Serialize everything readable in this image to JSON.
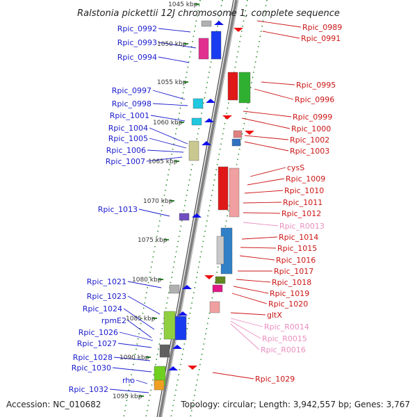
{
  "title": "Ralstonia pickettii 12J chromosome 1, complete sequence",
  "footer": {
    "accession": "Accession: NC_010682",
    "summary": "Topology: circular; Length: 3,942,557 bp; Genes: 3,767"
  },
  "kbp_labels": [
    "1045 kbp",
    "1050 kbp",
    "1055 kbp",
    "1060 kbp",
    "1065 kbp",
    "1070 kbp",
    "1075 kbp",
    "1080 kbp",
    "1085 kbp",
    "1090 kbp",
    "1095 kbp"
  ],
  "left_genes": [
    "Rpic_0992",
    "Rpic_0993",
    "Rpic_0994",
    "Rpic_0997",
    "Rpic_0998",
    "Rpic_1001",
    "Rpic_1004",
    "Rpic_1005",
    "Rpic_1006",
    "Rpic_1007",
    "Rpic_1013",
    "Rpic_1021",
    "Rpic_1023",
    "Rpic_1024",
    "rpmE2",
    "Rpic_1026",
    "Rpic_1027",
    "Rpic_1028",
    "Rpic_1030",
    "rho",
    "Rpic_1032"
  ],
  "right_genes": [
    "Rpic_0989",
    "Rpic_0991",
    "Rpic_0995",
    "Rpic_0996",
    "Rpic_0999",
    "Rpic_1000",
    "Rpic_1002",
    "Rpic_1003",
    "cysS",
    "Rpic_1009",
    "Rpic_1010",
    "Rpic_1011",
    "Rpic_1012",
    "Rpic_R0013",
    "Rpic_1014",
    "Rpic_1015",
    "Rpic_1016",
    "Rpic_1017",
    "Rpic_1018",
    "Rpic_1019",
    "Rpic_1020",
    "gltX",
    "Rpic_R0014",
    "Rpic_R0015",
    "Rpic_R0016",
    "Rpic_1029"
  ],
  "colors": {
    "left_label": "#1a1acc",
    "right_label": "#cc1414",
    "rna_label": "#e98fbf",
    "minus_arrow": "#1010ee",
    "plus_arrow": "#ee1010",
    "backbone": "#808080"
  }
}
